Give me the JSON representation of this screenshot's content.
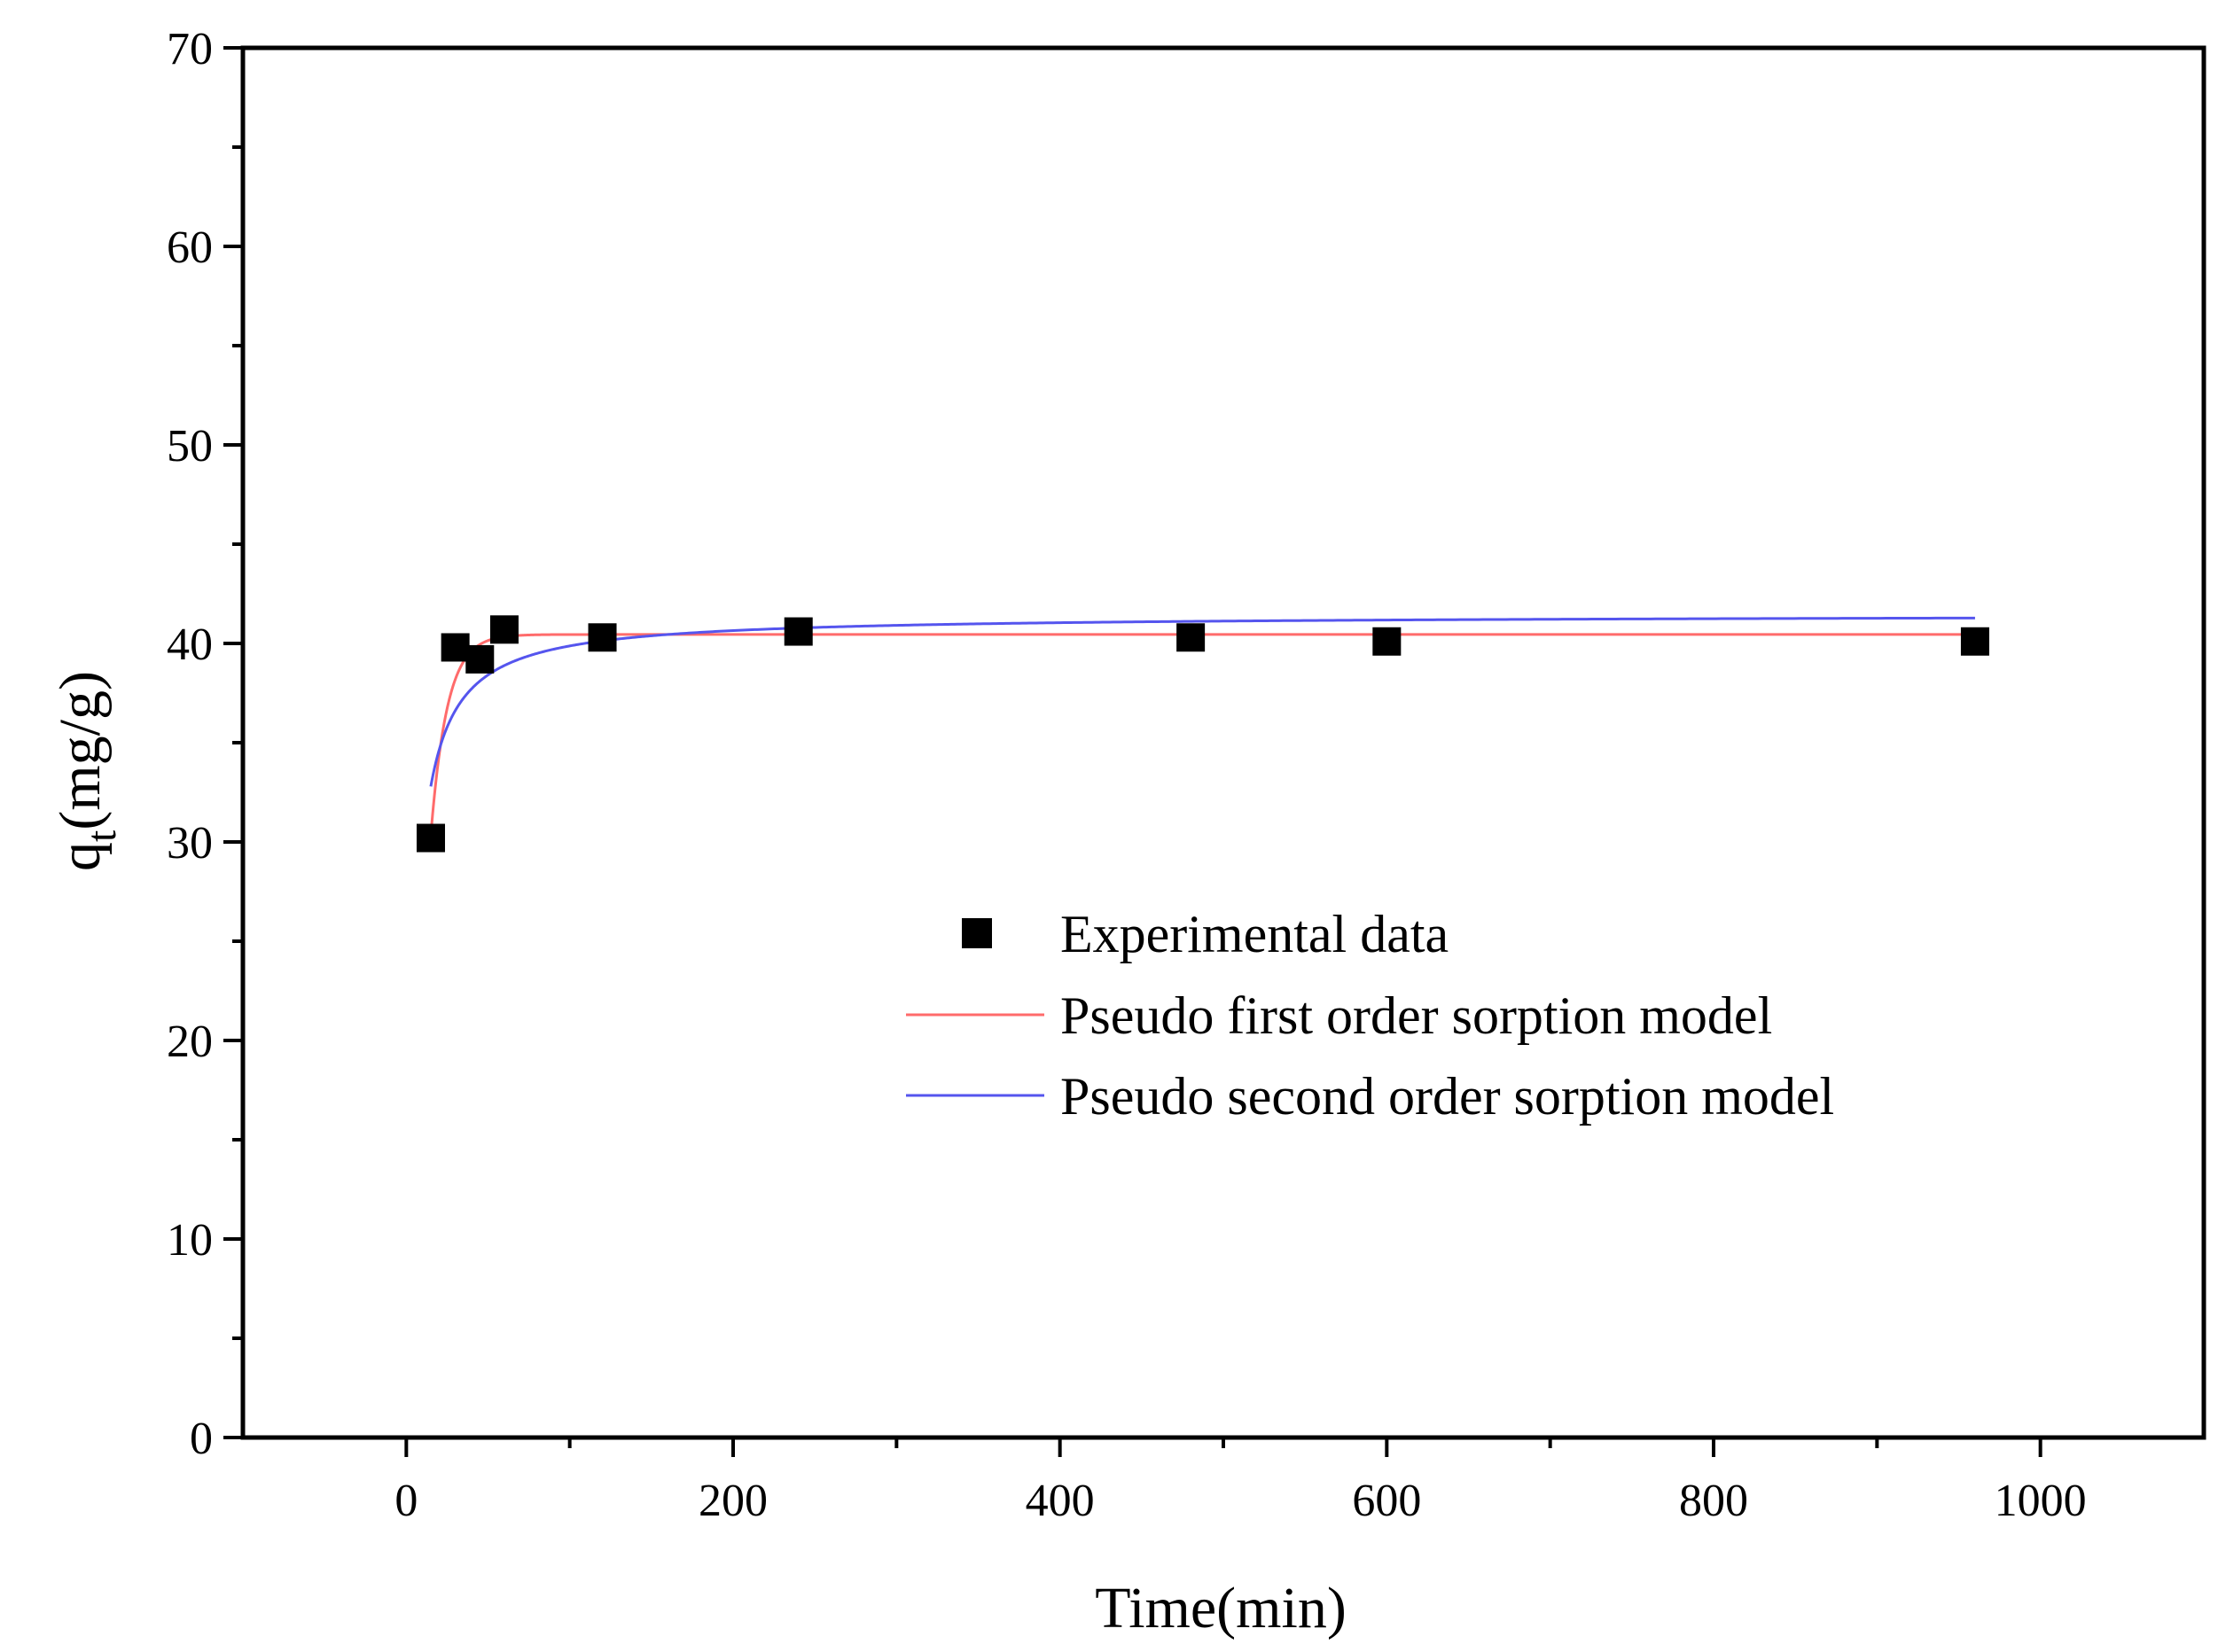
{
  "chart_data": {
    "type": "scatter",
    "title": "",
    "xlabel": "Time(min)",
    "ylabel_main": "q",
    "ylabel_sub": "t",
    "ylabel_unit": "(mg/g)",
    "xlim": [
      -100,
      1100
    ],
    "ylim": [
      0,
      70
    ],
    "x_ticks": [
      0,
      200,
      400,
      600,
      800,
      1000
    ],
    "x_ticks_minor": [
      100,
      300,
      500,
      700,
      900
    ],
    "y_ticks": [
      0,
      10,
      20,
      30,
      40,
      50,
      60,
      70
    ],
    "y_ticks_minor": [
      5,
      15,
      25,
      35,
      45,
      55,
      65
    ],
    "x_tick_labels": [
      "0",
      "200",
      "400",
      "600",
      "800",
      "1000"
    ],
    "y_tick_labels": [
      "0",
      "10",
      "20",
      "30",
      "40",
      "50",
      "60",
      "70"
    ],
    "grid": false,
    "legend_position": "center-right",
    "series": [
      {
        "name": "Experimental data",
        "kind": "markers",
        "color": "#000000",
        "x": [
          15,
          30,
          45,
          60,
          120,
          240,
          480,
          600,
          960
        ],
        "y": [
          30.2,
          39.8,
          39.2,
          40.7,
          40.3,
          40.6,
          40.3,
          40.1,
          40.1
        ]
      },
      {
        "name": "Pseudo first order sorption model",
        "kind": "line",
        "color": "#ff6b6b",
        "model": "first-order",
        "params": {
          "qe": 40.45,
          "k1": 0.1,
          "t0": 15
        },
        "t_range": [
          15,
          960
        ]
      },
      {
        "name": "Pseudo second order sorption model",
        "kind": "line",
        "color": "#5555ee",
        "model": "second-order",
        "params": {
          "qe": 41.45,
          "k2": 0.0061
        },
        "t_range": [
          15,
          960
        ]
      }
    ]
  },
  "legend": {
    "items": [
      {
        "label": "Experimental data",
        "kind": "marker",
        "color": "#000000"
      },
      {
        "label": "Pseudo first order sorption model",
        "kind": "line",
        "color": "#ff6b6b"
      },
      {
        "label": "Pseudo second order sorption model",
        "kind": "line",
        "color": "#5555ee"
      }
    ]
  }
}
